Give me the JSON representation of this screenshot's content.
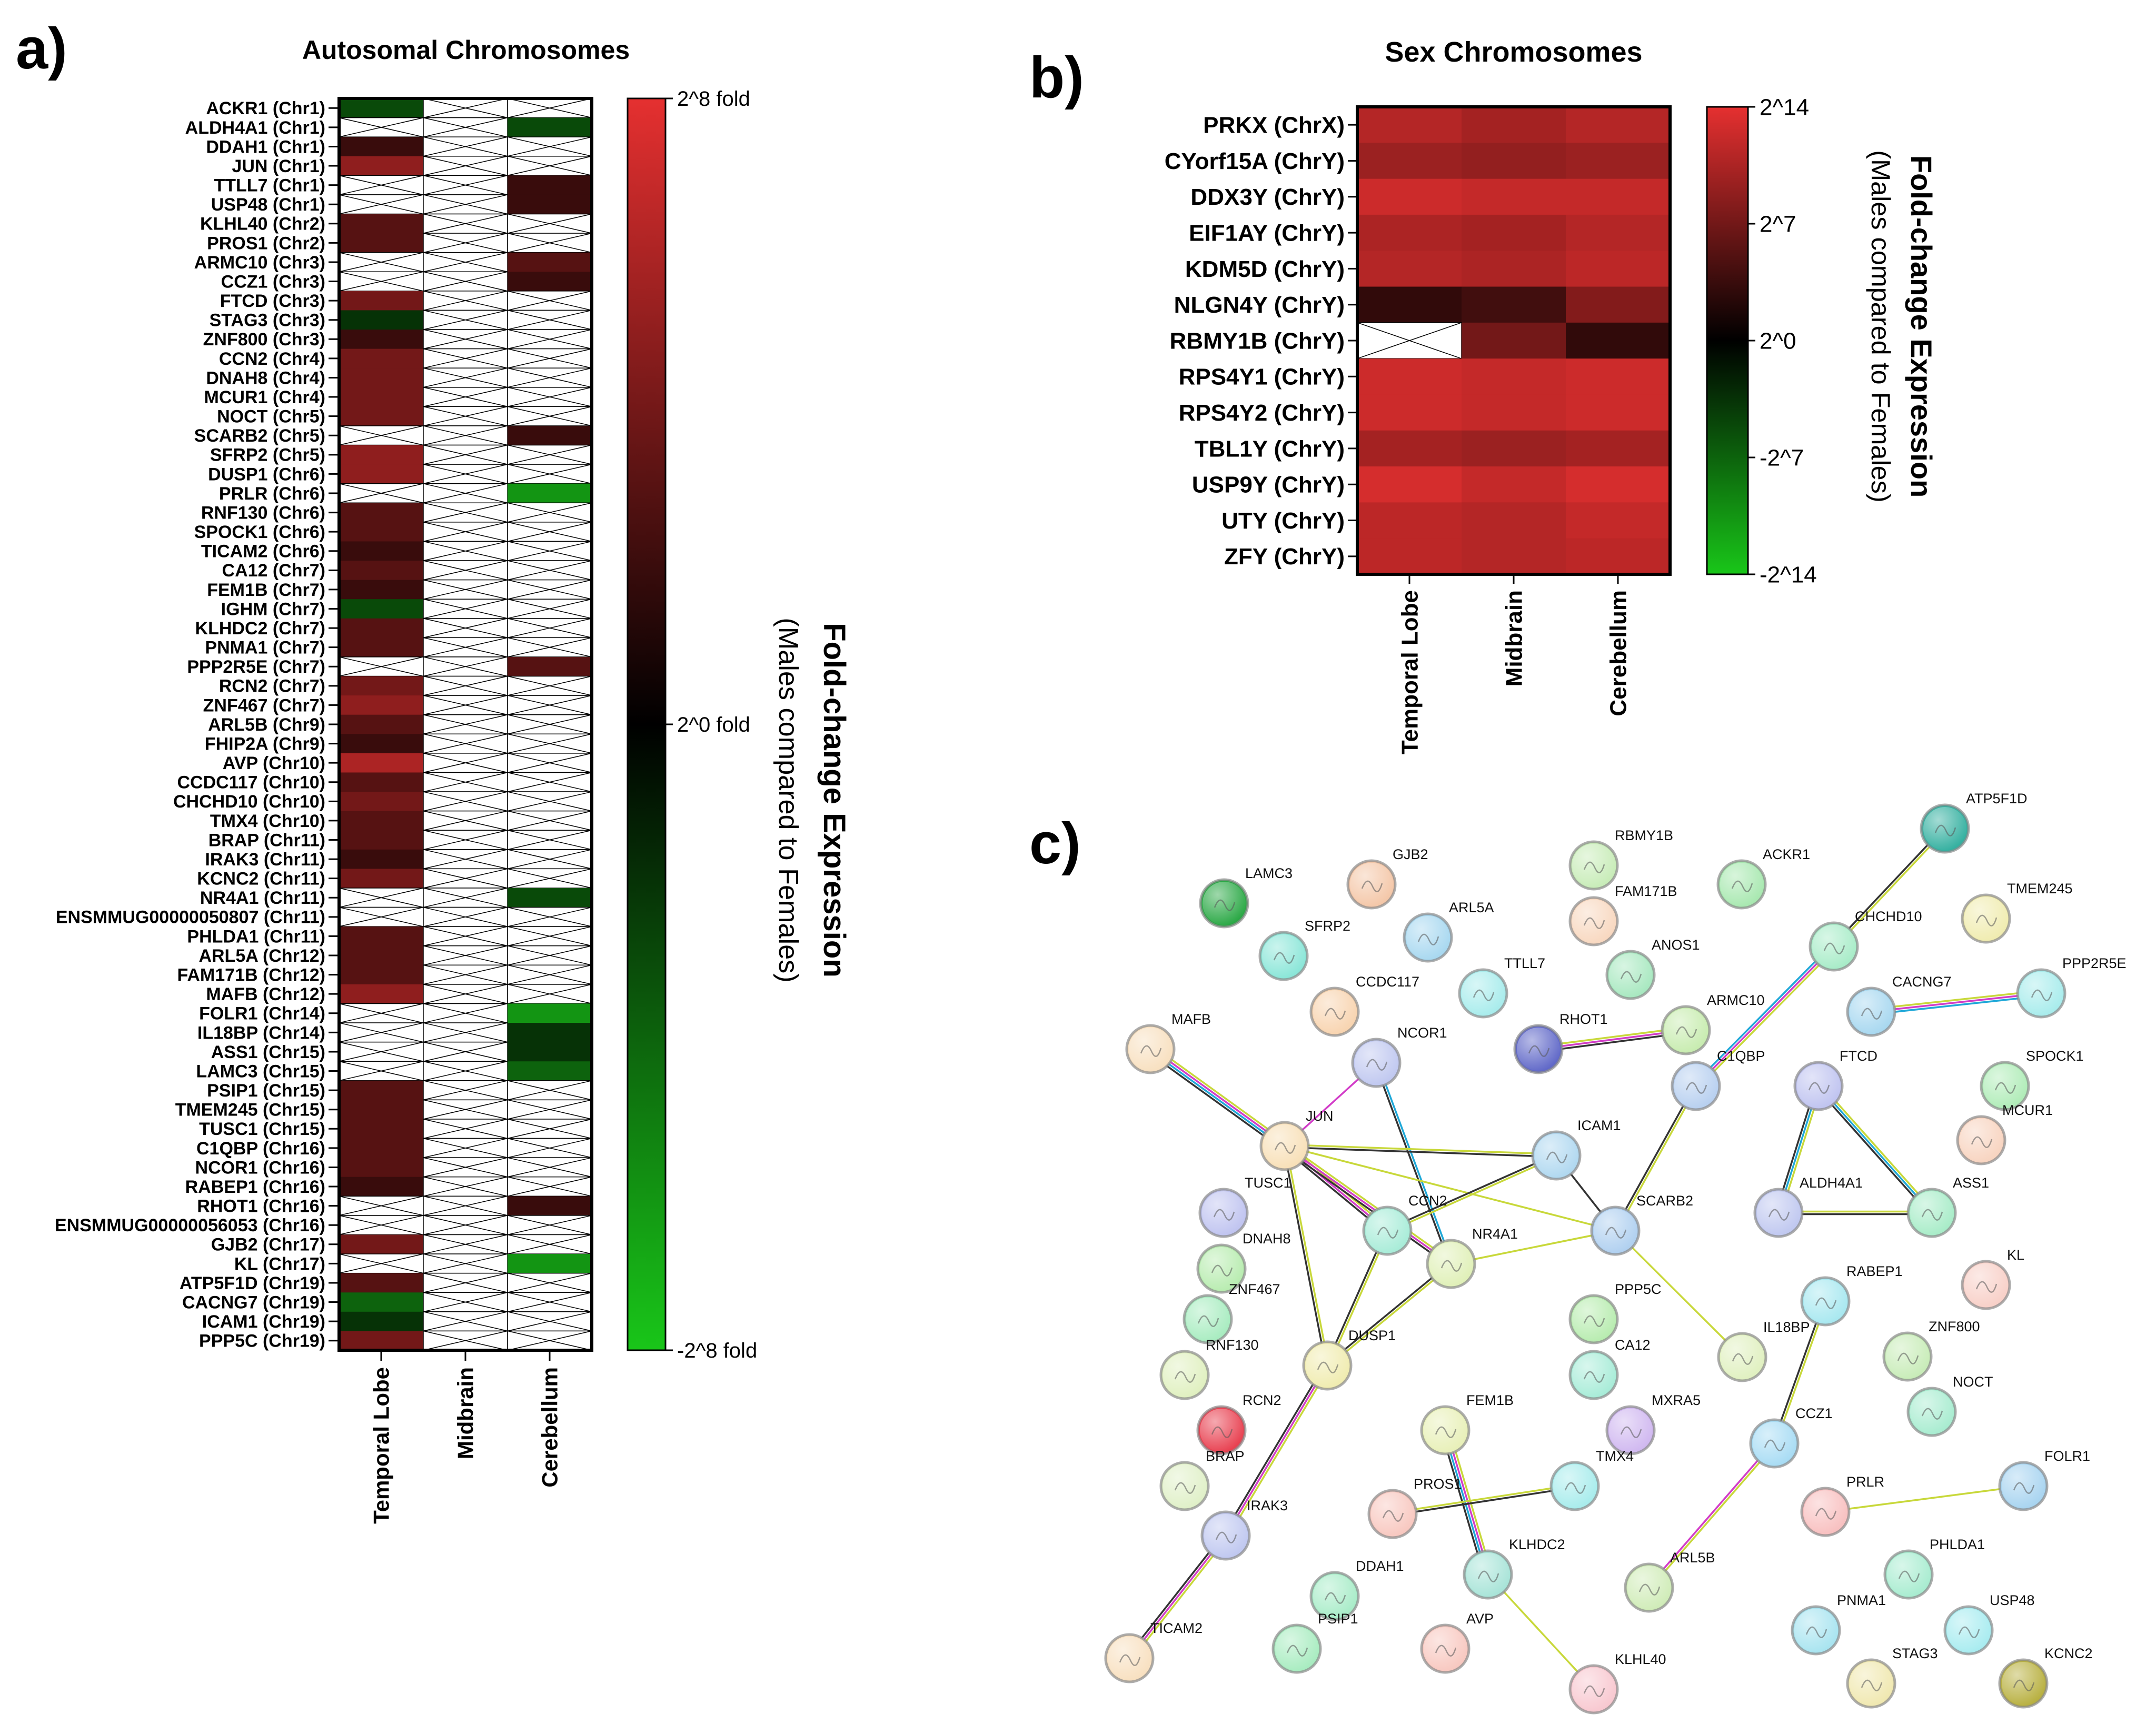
{
  "colors": {
    "high": "#e53030",
    "mid": "#000000",
    "low": "#19c619",
    "edge_text": "#111111",
    "edge_yellow": "#c8d83a",
    "edge_magenta": "#d23cc8",
    "edge_cyan": "#1fa8d8",
    "edge_dark": "#333333"
  },
  "panel_labels": {
    "a": "a)",
    "b": "b)",
    "c": "c)"
  },
  "chart_data": [
    {
      "panel": "a",
      "type": "heatmap",
      "title": "Autosomal Chromosomes",
      "columns": [
        "Temporal Lobe",
        "Midbrain",
        "Cerebellum"
      ],
      "colorbar": {
        "title": "Fold-change Expression",
        "subtitle": "(Males compared to Females)",
        "tick_labels": [
          "2^8 fold",
          "2^0 fold",
          "-2^8 fold"
        ],
        "range": [
          -8,
          8
        ]
      },
      "rows": [
        "ACKR1 (Chr1)",
        "ALDH4A1 (Chr1)",
        "DDAH1 (Chr1)",
        "JUN (Chr1)",
        "TTLL7 (Chr1)",
        "USP48 (Chr1)",
        "KLHL40 (Chr2)",
        "PROS1 (Chr2)",
        "ARMC10 (Chr3)",
        "CCZ1 (Chr3)",
        "FTCD (Chr3)",
        "STAG3 (Chr3)",
        "ZNF800 (Chr3)",
        "CCN2 (Chr4)",
        "DNAH8 (Chr4)",
        "MCUR1 (Chr4)",
        "NOCT (Chr5)",
        "SCARB2 (Chr5)",
        "SFRP2 (Chr5)",
        "DUSP1 (Chr6)",
        "PRLR (Chr6)",
        "RNF130 (Chr6)",
        "SPOCK1 (Chr6)",
        "TICAM2 (Chr6)",
        "CA12 (Chr7)",
        "FEM1B (Chr7)",
        "IGHM (Chr7)",
        "KLHDC2 (Chr7)",
        "PNMA1 (Chr7)",
        "PPP2R5E (Chr7)",
        "RCN2 (Chr7)",
        "ZNF467 (Chr7)",
        "ARL5B (Chr9)",
        "FHIP2A (Chr9)",
        "AVP (Chr10)",
        "CCDC117 (Chr10)",
        "CHCHD10 (Chr10)",
        "TMX4 (Chr10)",
        "BRAP (Chr11)",
        "IRAK3 (Chr11)",
        "KCNC2 (Chr11)",
        "NR4A1 (Chr11)",
        "ENSMMUG00000050807 (Chr11)",
        "PHLDA1 (Chr11)",
        "ARL5A (Chr12)",
        "FAM171B (Chr12)",
        "MAFB (Chr12)",
        "FOLR1 (Chr14)",
        "IL18BP (Chr14)",
        "ASS1 (Chr15)",
        "LAMC3 (Chr15)",
        "PSIP1 (Chr15)",
        "TMEM245 (Chr15)",
        "TUSC1 (Chr15)",
        "C1QBP (Chr16)",
        "NCOR1 (Chr16)",
        "RABEP1 (Chr16)",
        "RHOT1 (Chr16)",
        "ENSMMUG00000056053 (Chr16)",
        "GJB2 (Chr17)",
        "KL (Chr17)",
        "ATP5F1D (Chr19)",
        "CACNG7 (Chr19)",
        "ICAM1 (Chr19)",
        "PPP5C (Chr19)"
      ],
      "values": [
        [
          -3,
          null,
          null
        ],
        [
          null,
          null,
          -3
        ],
        [
          2,
          null,
          null
        ],
        [
          5,
          null,
          null
        ],
        [
          null,
          null,
          2
        ],
        [
          null,
          null,
          2
        ],
        [
          3,
          null,
          null
        ],
        [
          3,
          null,
          null
        ],
        [
          null,
          null,
          3
        ],
        [
          null,
          null,
          2
        ],
        [
          4,
          null,
          null
        ],
        [
          -2,
          null,
          null
        ],
        [
          2,
          null,
          null
        ],
        [
          4,
          null,
          null
        ],
        [
          4,
          null,
          null
        ],
        [
          4,
          null,
          null
        ],
        [
          4,
          null,
          null
        ],
        [
          null,
          null,
          2
        ],
        [
          5,
          null,
          null
        ],
        [
          5,
          null,
          null
        ],
        [
          null,
          null,
          -6
        ],
        [
          3,
          null,
          null
        ],
        [
          3,
          null,
          null
        ],
        [
          2,
          null,
          null
        ],
        [
          3,
          null,
          null
        ],
        [
          2,
          null,
          null
        ],
        [
          -3,
          null,
          null
        ],
        [
          3,
          null,
          null
        ],
        [
          3,
          null,
          null
        ],
        [
          null,
          null,
          3
        ],
        [
          4,
          null,
          null
        ],
        [
          5,
          null,
          null
        ],
        [
          3,
          null,
          null
        ],
        [
          2,
          null,
          null
        ],
        [
          6,
          null,
          null
        ],
        [
          3,
          null,
          null
        ],
        [
          4,
          null,
          null
        ],
        [
          3,
          null,
          null
        ],
        [
          3,
          null,
          null
        ],
        [
          2,
          null,
          null
        ],
        [
          4,
          null,
          null
        ],
        [
          null,
          null,
          -3
        ],
        [
          null,
          null,
          null
        ],
        [
          3,
          null,
          null
        ],
        [
          3,
          null,
          null
        ],
        [
          3,
          null,
          null
        ],
        [
          5,
          null,
          null
        ],
        [
          null,
          null,
          -6
        ],
        [
          null,
          null,
          -2
        ],
        [
          null,
          null,
          -2
        ],
        [
          null,
          null,
          -4
        ],
        [
          3,
          null,
          null
        ],
        [
          3,
          null,
          null
        ],
        [
          3,
          null,
          null
        ],
        [
          3,
          null,
          null
        ],
        [
          3,
          null,
          null
        ],
        [
          2,
          null,
          null
        ],
        [
          null,
          null,
          2
        ],
        [
          null,
          null,
          null
        ],
        [
          4,
          null,
          null
        ],
        [
          null,
          null,
          -6
        ],
        [
          3,
          null,
          null
        ],
        [
          -4,
          null,
          null
        ],
        [
          -2,
          null,
          null
        ],
        [
          4,
          null,
          null
        ]
      ]
    },
    {
      "panel": "b",
      "type": "heatmap",
      "title": "Sex Chromosomes",
      "columns": [
        "Temporal Lobe",
        "Midbrain",
        "Cerebellum"
      ],
      "colorbar": {
        "title": "Fold-change Expression",
        "subtitle": "(Males compared to Females)",
        "tick_labels": [
          "2^14",
          "2^7",
          "2^0",
          "-2^7",
          "-2^14"
        ],
        "range": [
          -14,
          14
        ]
      },
      "rows": [
        "PRKX (ChrX)",
        "CYorf15A (ChrY)",
        "DDX3Y (ChrY)",
        "EIF1AY (ChrY)",
        "KDM5D (ChrY)",
        "NLGN4Y (ChrY)",
        "RBMY1B (ChrY)",
        "RPS4Y1 (ChrY)",
        "RPS4Y2 (ChrY)",
        "TBL1Y (ChrY)",
        "USP9Y (ChrY)",
        "UTY (ChrY)",
        "ZFY (ChrY)"
      ],
      "values": [
        [
          11,
          10,
          11
        ],
        [
          9.5,
          9,
          9.5
        ],
        [
          12.5,
          12,
          12
        ],
        [
          10.5,
          10,
          11
        ],
        [
          11,
          10.5,
          11.5
        ],
        [
          3,
          4,
          8
        ],
        [
          null,
          7,
          3
        ],
        [
          12.5,
          12,
          12.5
        ],
        [
          12.5,
          12,
          12.5
        ],
        [
          10,
          9.5,
          10
        ],
        [
          13,
          12,
          13
        ],
        [
          11.5,
          11,
          12
        ],
        [
          11.5,
          11,
          11.5
        ]
      ]
    },
    {
      "panel": "c",
      "type": "network",
      "nodes": [
        {
          "id": "LAMC3",
          "label": "LAMC3",
          "color": "#2aa845"
        },
        {
          "id": "GJB2",
          "label": "GJB2",
          "color": "#f4c7a8"
        },
        {
          "id": "SFRP2",
          "label": "SFRP2",
          "color": "#8ae6d8"
        },
        {
          "id": "ARL5A",
          "label": "ARL5A",
          "color": "#a8d8f0"
        },
        {
          "id": "TTLL7",
          "label": "TTLL7",
          "color": "#a8ecec"
        },
        {
          "id": "CCDC117",
          "label": "CCDC117",
          "color": "#f8d4b0"
        },
        {
          "id": "RBMY1B",
          "label": "RBMY1B",
          "color": "#c8ecb8"
        },
        {
          "id": "FAM171B",
          "label": "FAM171B",
          "color": "#f8d8c0"
        },
        {
          "id": "ACKR1",
          "label": "ACKR1",
          "color": "#a8e8b0"
        },
        {
          "id": "ANOS1",
          "label": "ANOS1",
          "color": "#a8e8c0"
        },
        {
          "id": "ATP5F1D",
          "label": "ATP5F1D",
          "color": "#34b0a0"
        },
        {
          "id": "CHCHD10",
          "label": "CHCHD10",
          "color": "#a8ecc8"
        },
        {
          "id": "TMEM245",
          "label": "TMEM245",
          "color": "#f0ecb0"
        },
        {
          "id": "PPP2R5E",
          "label": "PPP2R5E",
          "color": "#a8ecec"
        },
        {
          "id": "CACNG7",
          "label": "CACNG7",
          "color": "#a8d8f0"
        },
        {
          "id": "ARMC10",
          "label": "ARMC10",
          "color": "#c8ecb0"
        },
        {
          "id": "RHOT1",
          "label": "RHOT1",
          "color": "#6068c8"
        },
        {
          "id": "MAFB",
          "label": "MAFB",
          "color": "#f8e0c0"
        },
        {
          "id": "NCOR1",
          "label": "NCOR1",
          "color": "#c0c8f0"
        },
        {
          "id": "JUN",
          "label": "JUN",
          "color": "#f8e0b8"
        },
        {
          "id": "C1QBP",
          "label": "C1QBP",
          "color": "#b8d0f0"
        },
        {
          "id": "ICAM1",
          "label": "ICAM1",
          "color": "#b0d8f0"
        },
        {
          "id": "FTCD",
          "label": "FTCD",
          "color": "#c0c4f0"
        },
        {
          "id": "SPOCK1",
          "label": "SPOCK1",
          "color": "#b0ecb8"
        },
        {
          "id": "MCUR1",
          "label": "MCUR1",
          "color": "#f8d4c0"
        },
        {
          "id": "TUSC1",
          "label": "TUSC1",
          "color": "#c0c4f0"
        },
        {
          "id": "CCN2",
          "label": "CCN2",
          "color": "#a8ecd8"
        },
        {
          "id": "SCARB2",
          "label": "SCARB2",
          "color": "#b0d0f0"
        },
        {
          "id": "ALDH4A1",
          "label": "ALDH4A1",
          "color": "#c0c8f0"
        },
        {
          "id": "ASS1",
          "label": "ASS1",
          "color": "#a8ecc8"
        },
        {
          "id": "DNAH8",
          "label": "DNAH8",
          "color": "#b8ecb0"
        },
        {
          "id": "NR4A1",
          "label": "NR4A1",
          "color": "#e0f0b8"
        },
        {
          "id": "ZNF467",
          "label": "ZNF467",
          "color": "#a8ecc0"
        },
        {
          "id": "PPP5C",
          "label": "PPP5C",
          "color": "#b8ecb0"
        },
        {
          "id": "RABEP1",
          "label": "RABEP1",
          "color": "#a8e8f0"
        },
        {
          "id": "KL",
          "label": "KL",
          "color": "#f8d0c8"
        },
        {
          "id": "CA12",
          "label": "CA12",
          "color": "#a8ecd8"
        },
        {
          "id": "IL18BP",
          "label": "IL18BP",
          "color": "#e0f0c0"
        },
        {
          "id": "ZNF800",
          "label": "ZNF800",
          "color": "#c8ecb8"
        },
        {
          "id": "RNF130",
          "label": "RNF130",
          "color": "#e0f0c0"
        },
        {
          "id": "DUSP1",
          "label": "DUSP1",
          "color": "#f0ecb0"
        },
        {
          "id": "NOCT",
          "label": "NOCT",
          "color": "#a8ecd0"
        },
        {
          "id": "RCN2",
          "label": "RCN2",
          "color": "#e84050"
        },
        {
          "id": "FEM1B",
          "label": "FEM1B",
          "color": "#e8f0b8"
        },
        {
          "id": "MXRA5",
          "label": "MXRA5",
          "color": "#d0b8f0"
        },
        {
          "id": "CCZ1",
          "label": "CCZ1",
          "color": "#a8dcf4"
        },
        {
          "id": "BRAP",
          "label": "BRAP",
          "color": "#e0f0c8"
        },
        {
          "id": "PROS1",
          "label": "PROS1",
          "color": "#f8c8c0"
        },
        {
          "id": "TMX4",
          "label": "TMX4",
          "color": "#a8ecec"
        },
        {
          "id": "PRLR",
          "label": "PRLR",
          "color": "#f8c0c0"
        },
        {
          "id": "FOLR1",
          "label": "FOLR1",
          "color": "#a8d4f0"
        },
        {
          "id": "IRAK3",
          "label": "IRAK3",
          "color": "#c0c8f0"
        },
        {
          "id": "KLHDC2",
          "label": "KLHDC2",
          "color": "#a8e4d8"
        },
        {
          "id": "ARL5B",
          "label": "ARL5B",
          "color": "#d0ecb8"
        },
        {
          "id": "PHLDA1",
          "label": "PHLDA1",
          "color": "#a8ecd0"
        },
        {
          "id": "DDAH1",
          "label": "DDAH1",
          "color": "#a8ecc8"
        },
        {
          "id": "PNMA1",
          "label": "PNMA1",
          "color": "#a8e4f0"
        },
        {
          "id": "USP48",
          "label": "USP48",
          "color": "#a8ecf0"
        },
        {
          "id": "TICAM2",
          "label": "TICAM2",
          "color": "#f8e0c0"
        },
        {
          "id": "PSIP1",
          "label": "PSIP1",
          "color": "#a8ecc0"
        },
        {
          "id": "AVP",
          "label": "AVP",
          "color": "#f8c8c0"
        },
        {
          "id": "KLHL40",
          "label": "KLHL40",
          "color": "#f8c8d0"
        },
        {
          "id": "STAG3",
          "label": "STAG3",
          "color": "#f0e8b0"
        },
        {
          "id": "KCNC2",
          "label": "KCNC2",
          "color": "#b8b040"
        }
      ],
      "edges": [
        {
          "source": "ATP5F1D",
          "target": "CHCHD10",
          "types": [
            "yellow",
            "dark"
          ]
        },
        {
          "source": "CHCHD10",
          "target": "C1QBP",
          "types": [
            "yellow",
            "magenta",
            "cyan"
          ]
        },
        {
          "source": "CACNG7",
          "target": "PPP2R5E",
          "types": [
            "yellow",
            "magenta",
            "cyan"
          ]
        },
        {
          "source": "RHOT1",
          "target": "ARMC10",
          "types": [
            "yellow",
            "magenta",
            "dark"
          ]
        },
        {
          "source": "MAFB",
          "target": "JUN",
          "types": [
            "yellow",
            "magenta",
            "cyan",
            "dark"
          ]
        },
        {
          "source": "NCOR1",
          "target": "JUN",
          "types": [
            "magenta"
          ]
        },
        {
          "source": "NCOR1",
          "target": "NR4A1",
          "types": [
            "cyan",
            "dark"
          ]
        },
        {
          "source": "JUN",
          "target": "ICAM1",
          "types": [
            "yellow",
            "dark"
          ]
        },
        {
          "source": "JUN",
          "target": "SCARB2",
          "types": [
            "yellow"
          ]
        },
        {
          "source": "JUN",
          "target": "CCN2",
          "types": [
            "yellow",
            "magenta",
            "dark"
          ]
        },
        {
          "source": "JUN",
          "target": "NR4A1",
          "types": [
            "yellow",
            "magenta",
            "dark"
          ]
        },
        {
          "source": "JUN",
          "target": "DUSP1",
          "types": [
            "yellow",
            "dark"
          ]
        },
        {
          "source": "C1QBP",
          "target": "SCARB2",
          "types": [
            "yellow",
            "dark"
          ]
        },
        {
          "source": "ICAM1",
          "target": "CCN2",
          "types": [
            "yellow",
            "dark"
          ]
        },
        {
          "source": "ICAM1",
          "target": "SCARB2",
          "types": [
            "dark"
          ]
        },
        {
          "source": "CCN2",
          "target": "DUSP1",
          "types": [
            "yellow",
            "dark"
          ]
        },
        {
          "source": "NR4A1",
          "target": "DUSP1",
          "types": [
            "yellow",
            "dark"
          ]
        },
        {
          "source": "NR4A1",
          "target": "SCARB2",
          "types": [
            "yellow"
          ]
        },
        {
          "source": "SCARB2",
          "target": "IL18BP",
          "types": [
            "yellow"
          ]
        },
        {
          "source": "FTCD",
          "target": "ALDH4A1",
          "types": [
            "yellow",
            "cyan",
            "dark"
          ]
        },
        {
          "source": "FTCD",
          "target": "ASS1",
          "types": [
            "yellow",
            "cyan",
            "dark"
          ]
        },
        {
          "source": "ALDH4A1",
          "target": "ASS1",
          "types": [
            "yellow",
            "dark"
          ]
        },
        {
          "source": "RABEP1",
          "target": "CCZ1",
          "types": [
            "yellow",
            "dark"
          ]
        },
        {
          "source": "CCZ1",
          "target": "ARL5B",
          "types": [
            "yellow",
            "magenta"
          ]
        },
        {
          "source": "DUSP1",
          "target": "IRAK3",
          "types": [
            "yellow",
            "magenta",
            "dark"
          ]
        },
        {
          "source": "IRAK3",
          "target": "TICAM2",
          "types": [
            "yellow",
            "magenta",
            "dark"
          ]
        },
        {
          "source": "FEM1B",
          "target": "KLHDC2",
          "types": [
            "yellow",
            "magenta",
            "cyan",
            "dark"
          ]
        },
        {
          "source": "PROS1",
          "target": "TMX4",
          "types": [
            "yellow",
            "dark"
          ]
        },
        {
          "source": "KLHDC2",
          "target": "KLHL40",
          "types": [
            "yellow"
          ]
        },
        {
          "source": "PRLR",
          "target": "FOLR1",
          "types": [
            "yellow"
          ]
        }
      ]
    }
  ]
}
